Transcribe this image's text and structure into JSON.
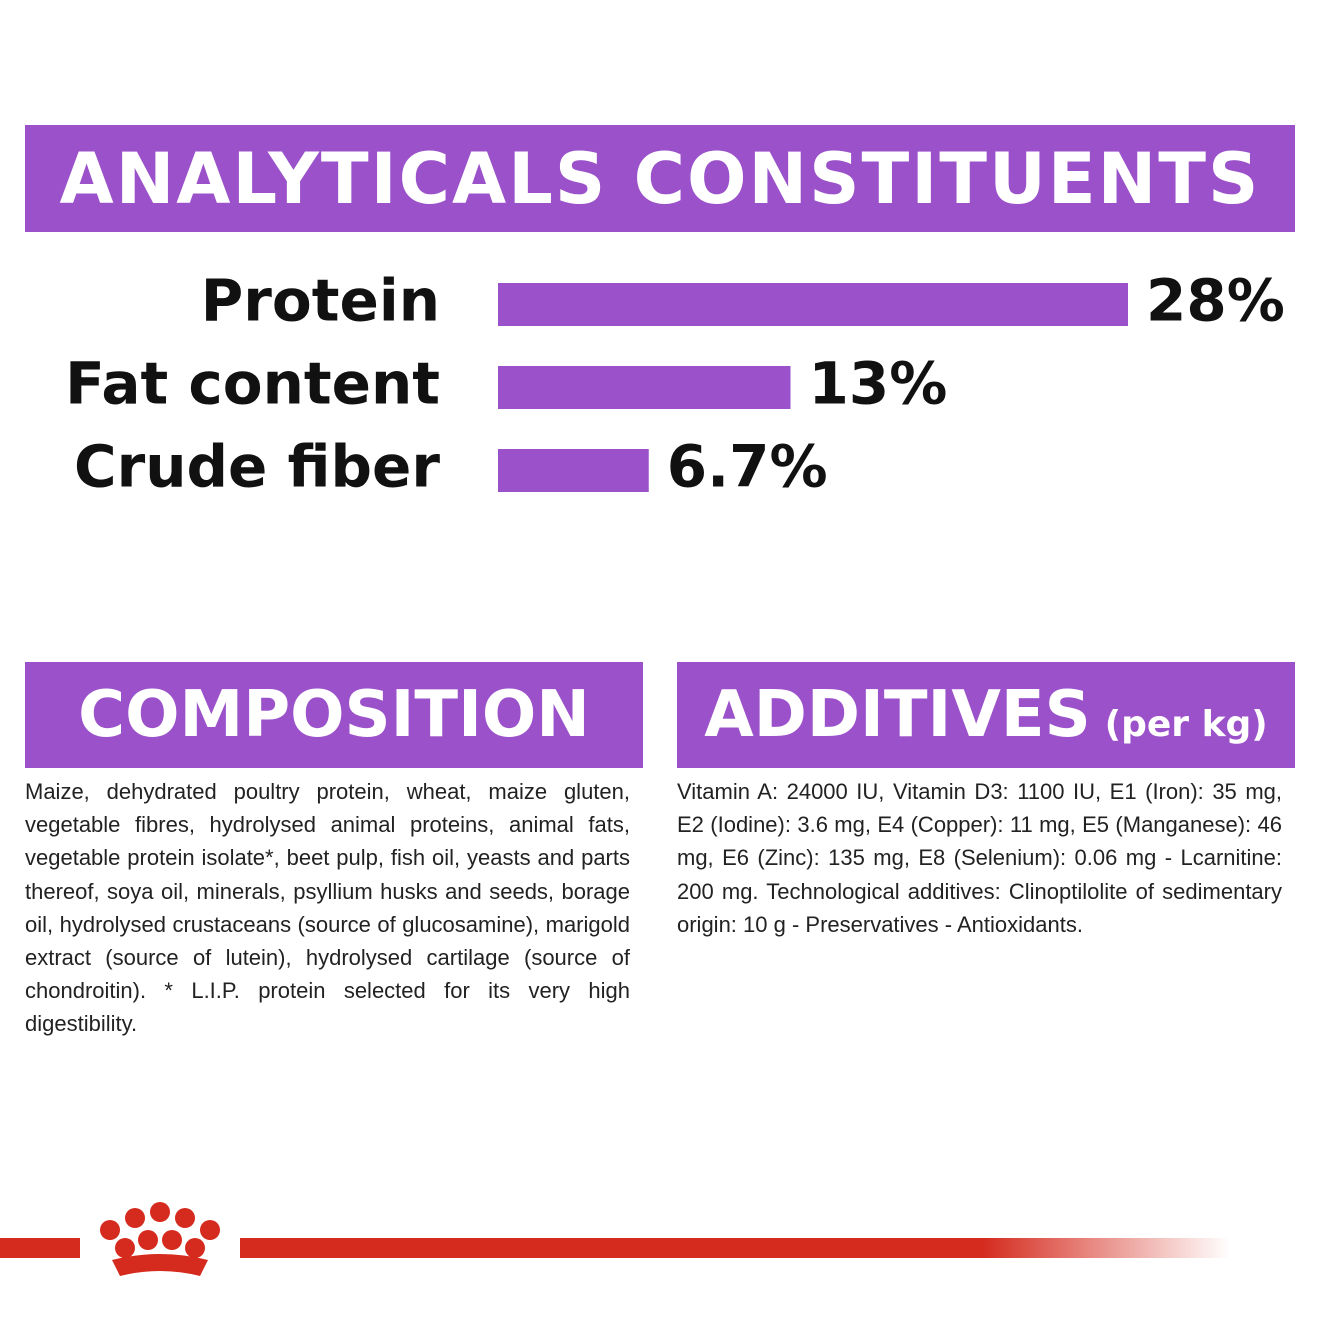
{
  "header": {
    "title": "ANALYTICALS CONSTITUENTS"
  },
  "chart_data": {
    "type": "bar",
    "orientation": "horizontal",
    "categories": [
      "Protein",
      "Fat content",
      "Crude fiber"
    ],
    "values": [
      28,
      13,
      6.7
    ],
    "value_labels": [
      "28%",
      "13%",
      "6.7%"
    ],
    "color": "#9b51c9"
  },
  "composition": {
    "title": "COMPOSITION",
    "text": "Maize, dehydrated poultry protein, wheat, maize gluten, vegetable fibres, hydrolysed animal proteins, animal fats, vegetable protein isolate*, beet pulp, fish oil, yeasts and parts thereof, soya oil, minerals, psyllium husks and seeds, borage oil, hydrolysed crustaceans (source of glucosamine), marigold extract (source of lutein), hydrolysed cartilage (source of chondroitin). * L.I.P. protein selected for its very high digestibility."
  },
  "additives": {
    "title": "ADDITIVES",
    "unit": "(per kg)",
    "text": "Vitamin A: 24000 IU, Vitamin D3: 1100 IU, E1 (Iron): 35 mg, E2 (Iodine): 3.6 mg, E4 (Copper): 11 mg, E5 (Manganese): 46 mg, E6 (Zinc): 135 mg, E8 (Selenium): 0.06 mg - Lcarnitine: 200 mg. Technological additives: Clinoptilolite of sedimentary origin: 10 g - Preservatives - Antioxidants."
  }
}
